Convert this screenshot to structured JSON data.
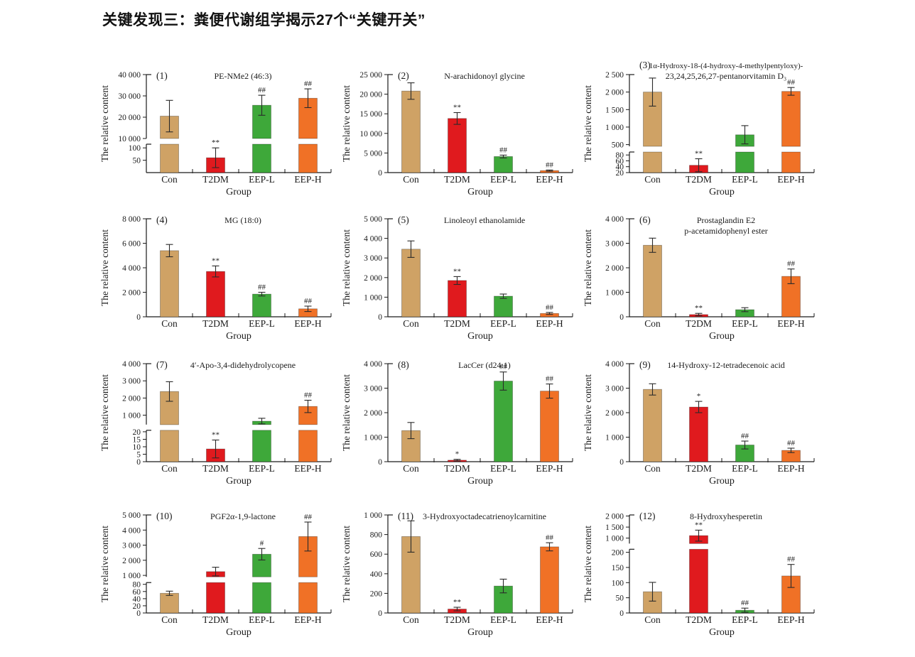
{
  "page": {
    "title": "关键发现三：粪便代谢组学揭示27个“关键开关”"
  },
  "shared": {
    "ylabel": "The relative content",
    "xlabel": "Group",
    "groups": [
      "Con",
      "T2DM",
      "EEP-L",
      "EEP-H"
    ],
    "colors": {
      "Con": "#CFA265",
      "T2DM": "#E01A1E",
      "EEP-L": "#3EA83A",
      "EEP-H": "#F07126"
    }
  },
  "chart_data": [
    {
      "type": "bar",
      "index": "(1)",
      "title_lines": [
        "PE-NMe2 (46:3)"
      ],
      "axis": {
        "kind": "broken",
        "lower": {
          "range": [
            0,
            115
          ],
          "ticks": [
            50,
            100
          ]
        },
        "upper": {
          "range": [
            10000,
            40000
          ],
          "ticks": [
            10000,
            20000,
            30000,
            40000
          ]
        },
        "lower_frac": 0.29
      },
      "values": [
        20500,
        60,
        25600,
        28900
      ],
      "errors": [
        7400,
        40,
        4700,
        4400
      ],
      "sig": [
        "",
        "**",
        "##",
        "##"
      ]
    },
    {
      "type": "bar",
      "index": "(2)",
      "title_lines": [
        "N-arachidonoyl glycine"
      ],
      "axis": {
        "kind": "linear",
        "range": [
          0,
          25000
        ],
        "ticks": [
          0,
          5000,
          10000,
          15000,
          20000,
          25000
        ]
      },
      "values": [
        20800,
        13800,
        4100,
        500
      ],
      "errors": [
        2100,
        1500,
        350,
        150
      ],
      "sig": [
        "",
        "**",
        "##",
        "##"
      ]
    },
    {
      "type": "bar",
      "index": "(3)",
      "title_lines": [
        "1α-Hydroxy-18-(4-hydroxy-4-methylpentyloxy)-",
        "23,24,25,26,27-pentanorvitamin D₃"
      ],
      "axis": {
        "kind": "broken",
        "lower": {
          "range": [
            20,
            90
          ],
          "ticks": [
            20,
            40,
            60,
            80
          ]
        },
        "upper": {
          "range": [
            450,
            2500
          ],
          "ticks": [
            500,
            1000,
            1500,
            2000,
            2500
          ]
        },
        "lower_frac": 0.21
      },
      "values": [
        2000,
        45,
        780,
        2020
      ],
      "errors": [
        400,
        22,
        260,
        110
      ],
      "sig": [
        "",
        "**",
        "",
        "##"
      ]
    },
    {
      "type": "bar",
      "index": "(4)",
      "title_lines": [
        "MG (18:0)"
      ],
      "axis": {
        "kind": "linear",
        "range": [
          0,
          8000
        ],
        "ticks": [
          0,
          2000,
          4000,
          6000,
          8000
        ]
      },
      "values": [
        5400,
        3700,
        1850,
        650
      ],
      "errors": [
        500,
        450,
        150,
        220
      ],
      "sig": [
        "",
        "**",
        "##",
        "##"
      ]
    },
    {
      "type": "bar",
      "index": "(5)",
      "title_lines": [
        "Linoleoyl ethanolamide"
      ],
      "axis": {
        "kind": "linear",
        "range": [
          0,
          5000
        ],
        "ticks": [
          0,
          1000,
          2000,
          3000,
          4000,
          5000
        ]
      },
      "values": [
        3450,
        1850,
        1050,
        170
      ],
      "errors": [
        420,
        200,
        110,
        50
      ],
      "sig": [
        "",
        "**",
        "",
        "##"
      ]
    },
    {
      "type": "bar",
      "index": "(6)",
      "title_lines": [
        "Prostaglandin E2",
        "p-acetamidophenyl ester"
      ],
      "axis": {
        "kind": "linear",
        "range": [
          0,
          4000
        ],
        "ticks": [
          0,
          1000,
          2000,
          3000,
          4000
        ]
      },
      "values": [
        2920,
        90,
        290,
        1650
      ],
      "errors": [
        290,
        50,
        80,
        300
      ],
      "sig": [
        "",
        "**",
        "",
        "##"
      ]
    },
    {
      "type": "bar",
      "index": "(7)",
      "title_lines": [
        "4′-Apo-3,4-didehydrolycopene"
      ],
      "axis": {
        "kind": "broken",
        "lower": {
          "range": [
            0,
            21
          ],
          "ticks": [
            0,
            5,
            10,
            15,
            20
          ]
        },
        "upper": {
          "range": [
            450,
            4000
          ],
          "ticks": [
            1000,
            2000,
            3000,
            4000
          ]
        },
        "lower_frac": 0.32
      },
      "values": [
        2380,
        8.5,
        650,
        1510
      ],
      "errors": [
        570,
        6,
        170,
        360
      ],
      "sig": [
        "",
        "**",
        "",
        "##"
      ]
    },
    {
      "type": "bar",
      "index": "(8)",
      "title_lines": [
        "LacCer (d24:1)"
      ],
      "axis": {
        "kind": "linear",
        "range": [
          0,
          4000
        ],
        "ticks": [
          0,
          1000,
          2000,
          3000,
          4000
        ]
      },
      "values": [
        1270,
        60,
        3290,
        2880
      ],
      "errors": [
        330,
        35,
        370,
        290
      ],
      "sig": [
        "",
        "*",
        "##",
        "##"
      ]
    },
    {
      "type": "bar",
      "index": "(9)",
      "title_lines": [
        "14-Hydroxy-12-tetradecenoic acid"
      ],
      "axis": {
        "kind": "linear",
        "range": [
          0,
          4000
        ],
        "ticks": [
          0,
          1000,
          2000,
          3000,
          4000
        ]
      },
      "values": [
        2950,
        2230,
        680,
        460
      ],
      "errors": [
        230,
        230,
        160,
        90
      ],
      "sig": [
        "",
        "*",
        "##",
        "##"
      ]
    },
    {
      "type": "bar",
      "index": "(10)",
      "title_lines": [
        "PGF2α-1,9-lactone"
      ],
      "axis": {
        "kind": "broken",
        "lower": {
          "range": [
            0,
            85
          ],
          "ticks": [
            0,
            20,
            40,
            60,
            80
          ]
        },
        "upper": {
          "range": [
            900,
            5000
          ],
          "ticks": [
            1000,
            2000,
            3000,
            4000,
            5000
          ]
        },
        "lower_frac": 0.31
      },
      "values": [
        55,
        1250,
        2400,
        3570
      ],
      "errors": [
        6,
        290,
        380,
        960
      ],
      "sig": [
        "",
        "",
        "#",
        "##"
      ]
    },
    {
      "type": "bar",
      "index": "(11)",
      "title_lines": [
        "3-Hydroxyoctadecatrienoylcarnitine"
      ],
      "axis": {
        "kind": "linear",
        "range": [
          0,
          1000
        ],
        "ticks": [
          0,
          200,
          400,
          600,
          800,
          1000
        ]
      },
      "values": [
        780,
        40,
        275,
        675
      ],
      "errors": [
        160,
        18,
        70,
        42
      ],
      "sig": [
        "",
        "**",
        "",
        "##"
      ]
    },
    {
      "type": "bar",
      "index": "(12)",
      "title_lines": [
        "8-Hydroxyhesperetin"
      ],
      "axis": {
        "kind": "broken",
        "lower": {
          "range": [
            0,
            210
          ],
          "ticks": [
            0,
            50,
            100,
            150,
            200
          ]
        },
        "upper": {
          "range": [
            750,
            2050
          ],
          "ticks": [
            1000,
            1500,
            2000
          ]
        },
        "lower_frac": 0.65
      },
      "values": [
        70,
        1110,
        9,
        122
      ],
      "errors": [
        31,
        250,
        7,
        38
      ],
      "sig": [
        "",
        "**",
        "##",
        "##"
      ]
    }
  ]
}
